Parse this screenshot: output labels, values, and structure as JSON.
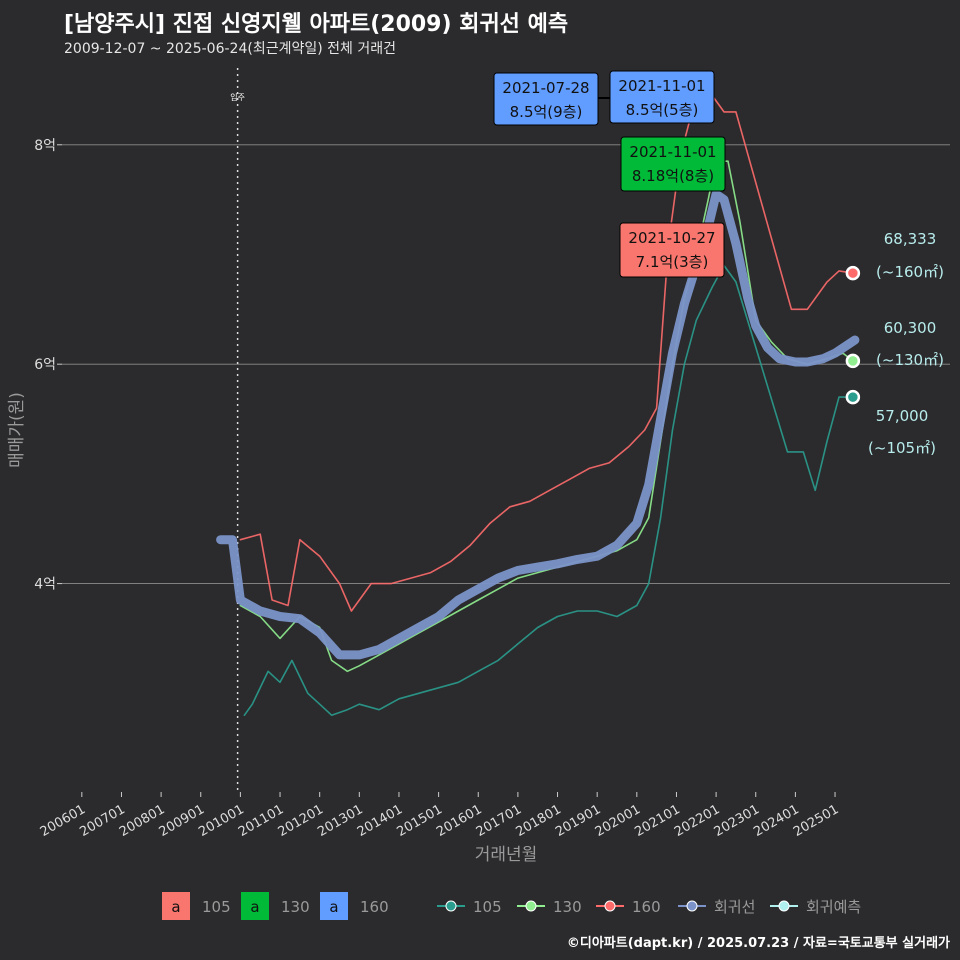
{
  "header": {
    "title": "[남양주시] 진접 신영지웰 아파트(2009) 회귀선 예측",
    "subtitle": "2009-12-07 ~ 2025-06-24(최근계약일) 전체 거래건"
  },
  "footer": {
    "credit": "©디아파트(dapt.kr) / 2025.07.23 / 자료=국토교통부 실거래가"
  },
  "colors": {
    "background": "#2b2b2d",
    "grid": "#8c8c8c",
    "s105": "#2a9d8f",
    "s130": "#90ee90",
    "s160": "#ff6b6b",
    "regression": "#7b93c9",
    "forecast": "#b0f0ee",
    "label105": "#f8766d",
    "label130": "#00ba38",
    "label160": "#619cff"
  },
  "chart_data": {
    "type": "line",
    "xlabel": "거래년월",
    "ylabel": "매매가(원)",
    "x_ticks": [
      "200601",
      "200701",
      "200801",
      "200901",
      "201001",
      "201101",
      "201201",
      "201301",
      "201401",
      "201501",
      "201601",
      "201701",
      "201801",
      "201901",
      "202001",
      "202101",
      "202201",
      "202301",
      "202401",
      "202501"
    ],
    "y_ticks": [
      {
        "value": 4,
        "label": "4억"
      },
      {
        "value": 6,
        "label": "6억"
      },
      {
        "value": 8,
        "label": "8억"
      }
    ],
    "xlim": [
      2005.5,
      2027.9
    ],
    "ylim": [
      2.1,
      8.7
    ],
    "vline": {
      "x": 2009.93,
      "label": "입주"
    },
    "series": [
      {
        "name": "105",
        "color_key": "s105",
        "points": [
          [
            2010.1,
            2.8
          ],
          [
            2010.3,
            2.9
          ],
          [
            2010.7,
            3.2
          ],
          [
            2011.0,
            3.1
          ],
          [
            2011.3,
            3.3
          ],
          [
            2011.7,
            3.0
          ],
          [
            2012.0,
            2.9
          ],
          [
            2012.3,
            2.8
          ],
          [
            2012.7,
            2.85
          ],
          [
            2013.0,
            2.9
          ],
          [
            2013.5,
            2.85
          ],
          [
            2014.0,
            2.95
          ],
          [
            2014.5,
            3.0
          ],
          [
            2015.0,
            3.05
          ],
          [
            2015.5,
            3.1
          ],
          [
            2016.0,
            3.2
          ],
          [
            2016.5,
            3.3
          ],
          [
            2017.0,
            3.45
          ],
          [
            2017.5,
            3.6
          ],
          [
            2018.0,
            3.7
          ],
          [
            2018.5,
            3.75
          ],
          [
            2019.0,
            3.75
          ],
          [
            2019.5,
            3.7
          ],
          [
            2020.0,
            3.8
          ],
          [
            2020.3,
            4.0
          ],
          [
            2020.6,
            4.6
          ],
          [
            2020.9,
            5.4
          ],
          [
            2021.2,
            6.0
          ],
          [
            2021.5,
            6.4
          ],
          [
            2021.9,
            6.7
          ],
          [
            2022.2,
            6.9
          ],
          [
            2022.5,
            6.75
          ],
          [
            2023.8,
            5.2
          ],
          [
            2024.2,
            5.2
          ],
          [
            2024.5,
            4.85
          ],
          [
            2024.8,
            5.3
          ],
          [
            2025.1,
            5.7
          ],
          [
            2025.45,
            5.7
          ]
        ]
      },
      {
        "name": "130",
        "color_key": "s130",
        "points": [
          [
            2010.0,
            3.8
          ],
          [
            2010.5,
            3.7
          ],
          [
            2011.0,
            3.5
          ],
          [
            2011.5,
            3.7
          ],
          [
            2012.0,
            3.6
          ],
          [
            2012.3,
            3.3
          ],
          [
            2012.7,
            3.2
          ],
          [
            2013.0,
            3.25
          ],
          [
            2013.5,
            3.35
          ],
          [
            2014.0,
            3.45
          ],
          [
            2014.5,
            3.55
          ],
          [
            2015.0,
            3.65
          ],
          [
            2015.5,
            3.75
          ],
          [
            2016.0,
            3.85
          ],
          [
            2016.5,
            3.95
          ],
          [
            2017.0,
            4.05
          ],
          [
            2017.5,
            4.1
          ],
          [
            2018.0,
            4.15
          ],
          [
            2018.5,
            4.2
          ],
          [
            2019.0,
            4.25
          ],
          [
            2019.5,
            4.3
          ],
          [
            2020.0,
            4.4
          ],
          [
            2020.3,
            4.6
          ],
          [
            2020.6,
            5.3
          ],
          [
            2020.9,
            6.0
          ],
          [
            2021.2,
            6.6
          ],
          [
            2021.5,
            7.0
          ],
          [
            2021.8,
            7.5
          ],
          [
            2022.0,
            7.85
          ],
          [
            2022.3,
            7.85
          ],
          [
            2022.6,
            7.3
          ],
          [
            2023.0,
            6.4
          ],
          [
            2023.4,
            6.2
          ],
          [
            2023.8,
            6.05
          ],
          [
            2024.3,
            6.0
          ],
          [
            2024.8,
            6.05
          ],
          [
            2025.2,
            6.1
          ],
          [
            2025.45,
            6.03
          ]
        ]
      },
      {
        "name": "160",
        "color_key": "s160",
        "points": [
          [
            2010.0,
            4.4
          ],
          [
            2010.5,
            4.45
          ],
          [
            2010.8,
            3.85
          ],
          [
            2011.2,
            3.8
          ],
          [
            2011.5,
            4.4
          ],
          [
            2012.0,
            4.25
          ],
          [
            2012.5,
            4.0
          ],
          [
            2012.8,
            3.75
          ],
          [
            2013.3,
            4.0
          ],
          [
            2013.8,
            4.0
          ],
          [
            2014.3,
            4.05
          ],
          [
            2014.8,
            4.1
          ],
          [
            2015.3,
            4.2
          ],
          [
            2015.8,
            4.35
          ],
          [
            2016.3,
            4.55
          ],
          [
            2016.8,
            4.7
          ],
          [
            2017.3,
            4.75
          ],
          [
            2017.8,
            4.85
          ],
          [
            2018.3,
            4.95
          ],
          [
            2018.8,
            5.05
          ],
          [
            2019.3,
            5.1
          ],
          [
            2019.8,
            5.25
          ],
          [
            2020.2,
            5.4
          ],
          [
            2020.5,
            5.6
          ],
          [
            2020.8,
            7.1
          ],
          [
            2021.1,
            7.9
          ],
          [
            2021.5,
            8.45
          ],
          [
            2021.9,
            8.45
          ],
          [
            2022.2,
            8.3
          ],
          [
            2022.5,
            8.3
          ],
          [
            2023.9,
            6.5
          ],
          [
            2024.3,
            6.5
          ],
          [
            2024.8,
            6.75
          ],
          [
            2025.1,
            6.85
          ],
          [
            2025.45,
            6.83
          ]
        ]
      },
      {
        "name": "회귀선",
        "color_key": "regression",
        "points": [
          [
            2009.5,
            4.4
          ],
          [
            2009.8,
            4.4
          ],
          [
            2010.0,
            3.85
          ],
          [
            2010.5,
            3.75
          ],
          [
            2011.0,
            3.7
          ],
          [
            2011.5,
            3.68
          ],
          [
            2012.0,
            3.55
          ],
          [
            2012.5,
            3.35
          ],
          [
            2013.0,
            3.35
          ],
          [
            2013.5,
            3.4
          ],
          [
            2014.0,
            3.5
          ],
          [
            2014.5,
            3.6
          ],
          [
            2015.0,
            3.7
          ],
          [
            2015.5,
            3.85
          ],
          [
            2016.0,
            3.95
          ],
          [
            2016.5,
            4.05
          ],
          [
            2017.0,
            4.12
          ],
          [
            2017.5,
            4.15
          ],
          [
            2018.0,
            4.18
          ],
          [
            2018.5,
            4.22
          ],
          [
            2019.0,
            4.25
          ],
          [
            2019.5,
            4.35
          ],
          [
            2020.0,
            4.55
          ],
          [
            2020.3,
            4.9
          ],
          [
            2020.6,
            5.5
          ],
          [
            2020.9,
            6.1
          ],
          [
            2021.2,
            6.55
          ],
          [
            2021.5,
            6.9
          ],
          [
            2021.8,
            7.25
          ],
          [
            2022.0,
            7.55
          ],
          [
            2022.2,
            7.5
          ],
          [
            2022.5,
            7.1
          ],
          [
            2022.8,
            6.6
          ],
          [
            2023.0,
            6.35
          ],
          [
            2023.3,
            6.15
          ],
          [
            2023.6,
            6.05
          ],
          [
            2024.0,
            6.02
          ],
          [
            2024.3,
            6.02
          ],
          [
            2024.7,
            6.05
          ],
          [
            2025.0,
            6.1
          ],
          [
            2025.5,
            6.22
          ]
        ]
      },
      {
        "name": "회귀예측",
        "color_key": "forecast",
        "points": []
      }
    ],
    "endpoints": [
      {
        "series": "160",
        "x": 2025.45,
        "y": 6.83,
        "price": "68,333",
        "area": "(~160㎡)"
      },
      {
        "series": "130",
        "x": 2025.45,
        "y": 6.03,
        "price": "60,300",
        "area": "(~130㎡)"
      },
      {
        "series": "105",
        "x": 2025.45,
        "y": 5.7,
        "price": "57,000",
        "area": "(~105㎡)"
      }
    ],
    "annotations": [
      {
        "color_key": "label160",
        "date": "2021-07-28",
        "price": "8.5억(9층)",
        "box": "b1"
      },
      {
        "color_key": "label160",
        "date": "2021-11-01",
        "price": "8.5억(5층)",
        "box": "b2"
      },
      {
        "color_key": "label130",
        "date": "2021-11-01",
        "price": "8.18억(8층)",
        "box": "b3"
      },
      {
        "color_key": "label105",
        "date": "2021-10-27",
        "price": "7.1억(3층)",
        "box": "b4"
      }
    ],
    "legend": {
      "position": "bottom",
      "label_items": [
        {
          "glyph": "a",
          "text": "105",
          "color_key": "label105"
        },
        {
          "glyph": "a",
          "text": "130",
          "color_key": "label130"
        },
        {
          "glyph": "a",
          "text": "160",
          "color_key": "label160"
        }
      ],
      "line_items": [
        {
          "text": "105",
          "color_key": "s105"
        },
        {
          "text": "130",
          "color_key": "s130"
        },
        {
          "text": "160",
          "color_key": "s160"
        },
        {
          "text": "회귀선",
          "color_key": "regression"
        },
        {
          "text": "회귀예측",
          "color_key": "forecast"
        }
      ]
    }
  }
}
